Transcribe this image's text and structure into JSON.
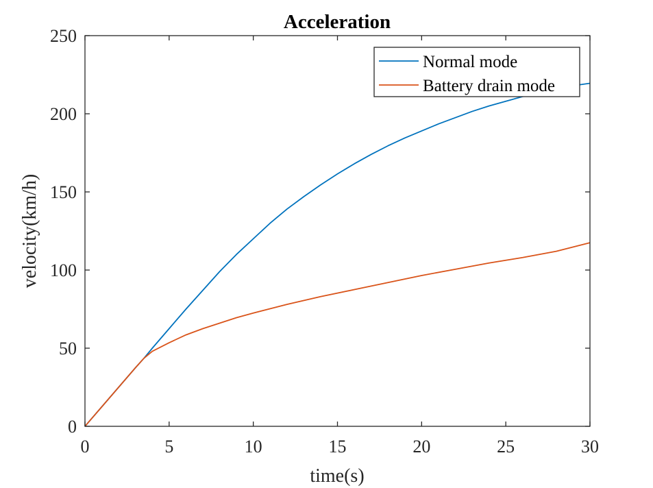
{
  "chart_data": {
    "type": "line",
    "title": "Acceleration",
    "xlabel": "time(s)",
    "ylabel": "velocity(km/h)",
    "xlim": [
      0,
      30
    ],
    "ylim": [
      0,
      250
    ],
    "xticks": [
      0,
      5,
      10,
      15,
      20,
      25,
      30
    ],
    "yticks": [
      0,
      50,
      100,
      150,
      200,
      250
    ],
    "grid": false,
    "legend_position": "top-right",
    "series": [
      {
        "name": "Normal mode",
        "color": "#0072BD",
        "x": [
          0,
          1,
          2,
          3,
          3.5,
          4,
          5,
          6,
          7,
          8,
          9,
          10,
          11,
          12,
          13,
          14,
          15,
          16,
          17,
          18,
          19,
          20,
          21,
          22,
          23,
          24,
          25,
          26,
          27,
          28,
          29,
          30
        ],
        "y": [
          0,
          12.5,
          25,
          37.5,
          43.5,
          50,
          62.5,
          75,
          87,
          99,
          110,
          120,
          130,
          139,
          147,
          154.5,
          161.5,
          168,
          174,
          179.5,
          184.5,
          189,
          193.5,
          197.5,
          201.5,
          205,
          208,
          211,
          213.5,
          216,
          218,
          219.5
        ]
      },
      {
        "name": "Battery drain mode",
        "color": "#D95319",
        "x": [
          0,
          1,
          2,
          3,
          3.5,
          4,
          5,
          6,
          7,
          8,
          9,
          10,
          12,
          14,
          16,
          18,
          20,
          22,
          24,
          26,
          28,
          30
        ],
        "y": [
          0,
          12.5,
          25,
          37.5,
          43.5,
          48,
          53.5,
          58.5,
          62.5,
          66,
          69.5,
          72.5,
          78,
          83,
          87.5,
          92,
          96.5,
          100.5,
          104.5,
          108,
          112,
          117.5
        ]
      }
    ]
  }
}
